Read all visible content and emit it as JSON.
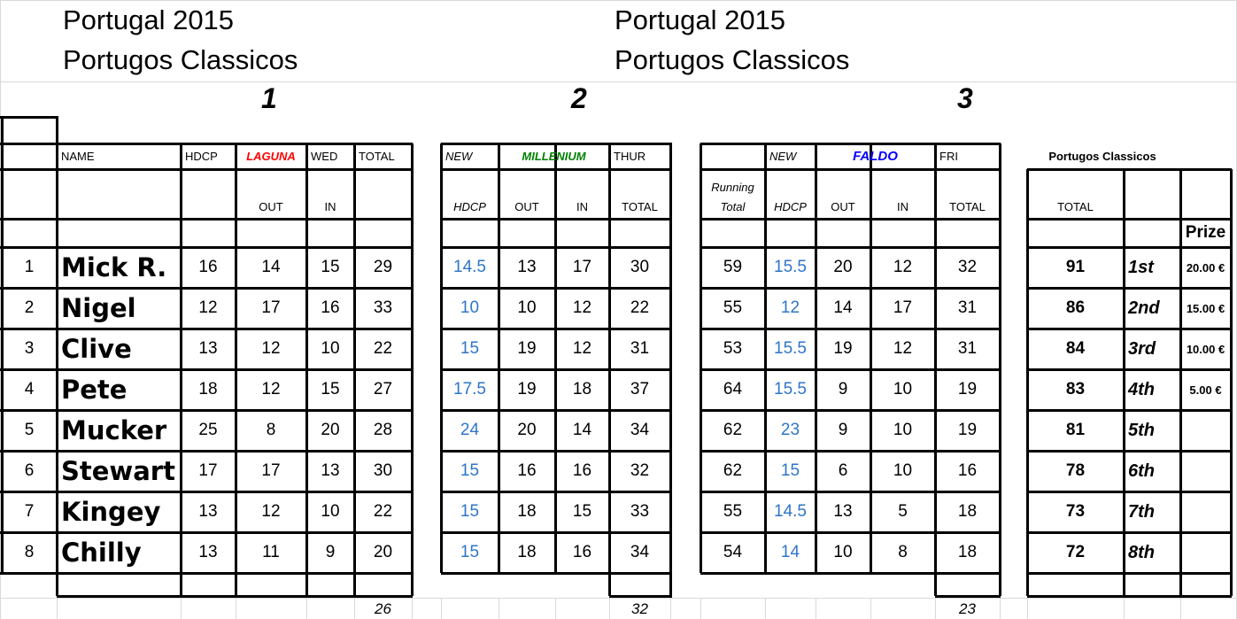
{
  "titles": {
    "left_line1": "Portugal 2015",
    "left_line2": "Portugos Classicos",
    "right_line1": "Portugal 2015",
    "right_line2": "Portugos Classicos"
  },
  "rounds": [
    "1",
    "2",
    "3"
  ],
  "header": {
    "name": "NAME",
    "hdcp": "HDCP",
    "laguna": "LAGUNA",
    "wed": "WED",
    "total": "TOTAL",
    "new": "NEW",
    "millenium": "MILLENIUM",
    "thur": "THUR",
    "new2": "NEW",
    "faldo": "FALDO",
    "fri": "FRI",
    "portugos": "Portugos Classicos",
    "out": "OUT",
    "in": "IN",
    "hdcp_italic": "HDCP",
    "running1": "Running",
    "running2": "Total",
    "prize": "Prize"
  },
  "colors": {
    "laguna": "#ff0000",
    "millenium": "#008000",
    "faldo": "#0000ff",
    "handicap_blue": "#2e75c8"
  },
  "players": [
    {
      "pos": "1",
      "name": "Mick R.",
      "hdcp": "16",
      "r1_out": "14",
      "r1_in": "15",
      "r1_total": "29",
      "r2_hdcp": "14.5",
      "r2_out": "13",
      "r2_in": "17",
      "r2_total": "30",
      "running": "59",
      "r3_hdcp": "15.5",
      "r3_out": "20",
      "r3_in": "12",
      "r3_total": "32",
      "total": "91",
      "place": "1st",
      "prize": "20.00 €"
    },
    {
      "pos": "2",
      "name": "Nigel",
      "hdcp": "12",
      "r1_out": "17",
      "r1_in": "16",
      "r1_total": "33",
      "r2_hdcp": "10",
      "r2_out": "10",
      "r2_in": "12",
      "r2_total": "22",
      "running": "55",
      "r3_hdcp": "12",
      "r3_out": "14",
      "r3_in": "17",
      "r3_total": "31",
      "total": "86",
      "place": "2nd",
      "prize": "15.00 €"
    },
    {
      "pos": "3",
      "name": "Clive",
      "hdcp": "13",
      "r1_out": "12",
      "r1_in": "10",
      "r1_total": "22",
      "r2_hdcp": "15",
      "r2_out": "19",
      "r2_in": "12",
      "r2_total": "31",
      "running": "53",
      "r3_hdcp": "15.5",
      "r3_out": "19",
      "r3_in": "12",
      "r3_total": "31",
      "total": "84",
      "place": "3rd",
      "prize": "10.00 €"
    },
    {
      "pos": "4",
      "name": "Pete",
      "hdcp": "18",
      "r1_out": "12",
      "r1_in": "15",
      "r1_total": "27",
      "r2_hdcp": "17.5",
      "r2_out": "19",
      "r2_in": "18",
      "r2_total": "37",
      "running": "64",
      "r3_hdcp": "15.5",
      "r3_out": "9",
      "r3_in": "10",
      "r3_total": "19",
      "total": "83",
      "place": "4th",
      "prize": "5.00 €"
    },
    {
      "pos": "5",
      "name": "Mucker",
      "hdcp": "25",
      "r1_out": "8",
      "r1_in": "20",
      "r1_total": "28",
      "r2_hdcp": "24",
      "r2_out": "20",
      "r2_in": "14",
      "r2_total": "34",
      "running": "62",
      "r3_hdcp": "23",
      "r3_out": "9",
      "r3_in": "10",
      "r3_total": "19",
      "total": "81",
      "place": "5th",
      "prize": ""
    },
    {
      "pos": "6",
      "name": "Stewart",
      "hdcp": "17",
      "r1_out": "17",
      "r1_in": "13",
      "r1_total": "30",
      "r2_hdcp": "15",
      "r2_out": "16",
      "r2_in": "16",
      "r2_total": "32",
      "running": "62",
      "r3_hdcp": "15",
      "r3_out": "6",
      "r3_in": "10",
      "r3_total": "16",
      "total": "78",
      "place": "6th",
      "prize": ""
    },
    {
      "pos": "7",
      "name": "Kingey",
      "hdcp": "13",
      "r1_out": "12",
      "r1_in": "10",
      "r1_total": "22",
      "r2_hdcp": "15",
      "r2_out": "18",
      "r2_in": "15",
      "r2_total": "33",
      "running": "55",
      "r3_hdcp": "14.5",
      "r3_out": "13",
      "r3_in": "5",
      "r3_total": "18",
      "total": "73",
      "place": "7th",
      "prize": ""
    },
    {
      "pos": "8",
      "name": "Chilly",
      "hdcp": "13",
      "r1_out": "11",
      "r1_in": "9",
      "r1_total": "20",
      "r2_hdcp": "15",
      "r2_out": "18",
      "r2_in": "16",
      "r2_total": "34",
      "running": "54",
      "r3_hdcp": "14",
      "r3_out": "10",
      "r3_in": "8",
      "r3_total": "18",
      "total": "72",
      "place": "8th",
      "prize": ""
    }
  ],
  "round_totals": {
    "r1": "26",
    "r2": "32",
    "r3": "23"
  }
}
